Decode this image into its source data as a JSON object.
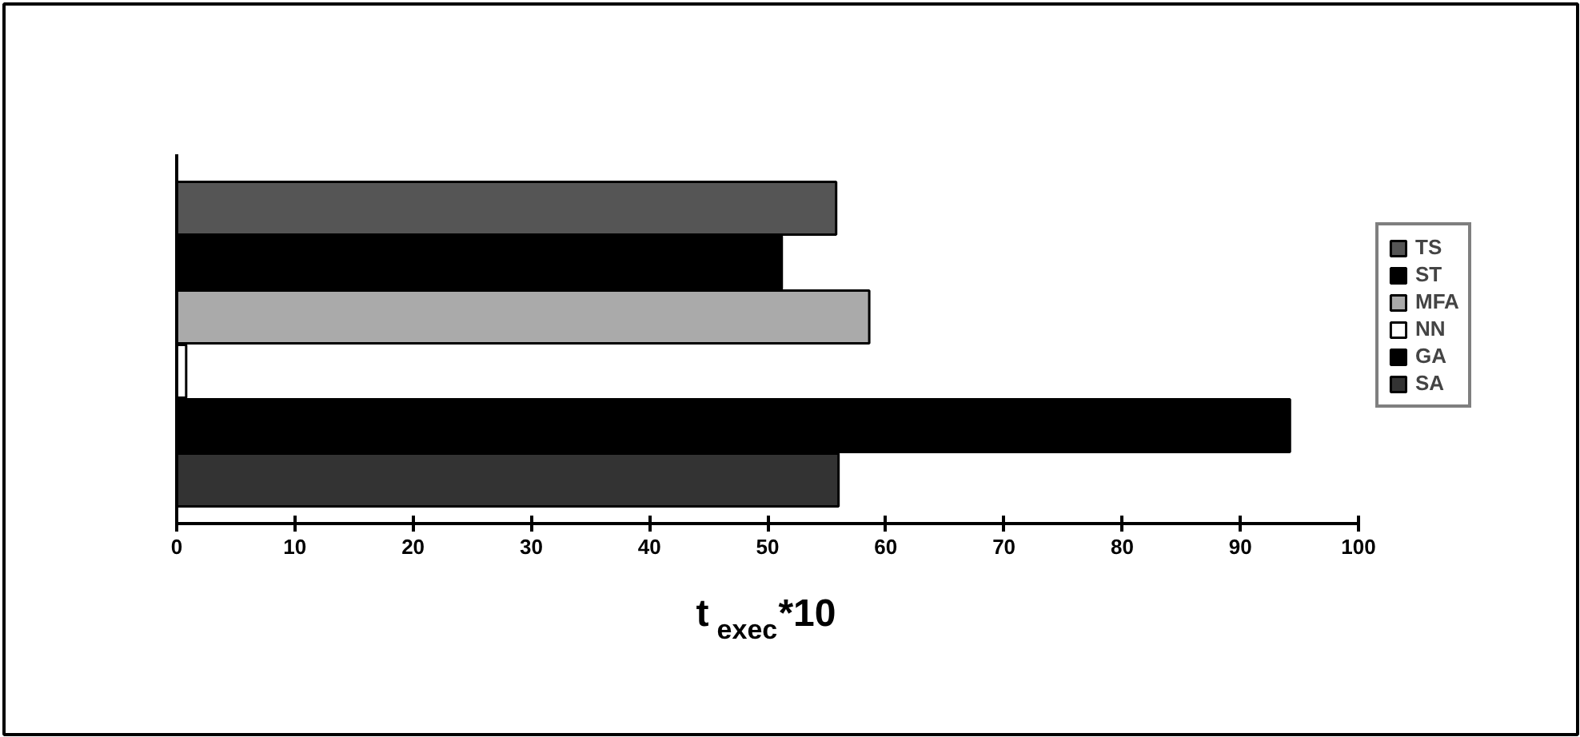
{
  "chart_data": {
    "type": "bar",
    "orientation": "horizontal",
    "categories": [
      null
    ],
    "series": [
      {
        "name": "TS",
        "color": "#555555",
        "values": [
          55.8
        ]
      },
      {
        "name": "ST",
        "color": "#000000",
        "values": [
          51.2
        ]
      },
      {
        "name": "MFA",
        "color": "#aaaaaa",
        "values": [
          58.6
        ]
      },
      {
        "name": "NN",
        "color": "#ffffff",
        "values": [
          0.8
        ]
      },
      {
        "name": "GA",
        "color": "#000000",
        "values": [
          94.2
        ]
      },
      {
        "name": "SA",
        "color": "#333333",
        "values": [
          56.0
        ]
      }
    ],
    "xlim": [
      0,
      100
    ],
    "xticks": [
      0,
      10,
      20,
      30,
      40,
      50,
      60,
      70,
      80,
      90,
      100
    ],
    "xlabel": "t$_{exec}$*10",
    "grid": false,
    "legend": "right"
  }
}
